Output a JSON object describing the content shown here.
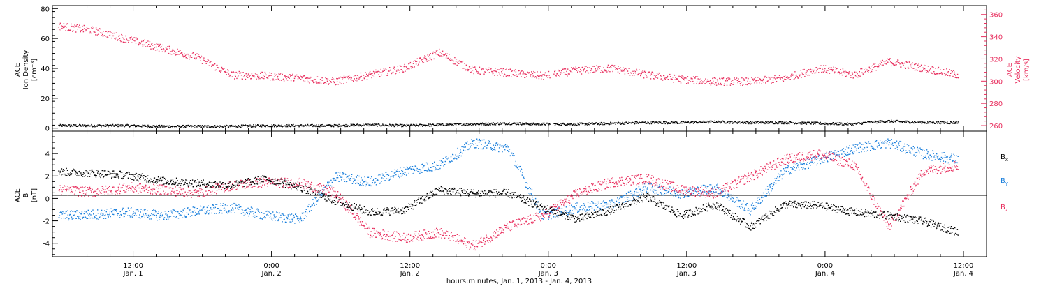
{
  "colors": {
    "black": "#000000",
    "pink": "#e8305f",
    "blue": "#1a7fdc"
  },
  "chart_data": [
    {
      "type": "scatter",
      "panel": "top",
      "ylabel_left": [
        "ACE",
        "Ion Density",
        "[cm⁻³]"
      ],
      "ylabel_right": [
        "ACE",
        "Velocity",
        "[km/s]"
      ],
      "ylim_left": [
        -2,
        82
      ],
      "yticks_left": [
        0,
        20,
        40,
        60,
        80
      ],
      "ylim_right": [
        255,
        368
      ],
      "yticks_right": [
        260,
        280,
        300,
        320,
        340,
        360
      ],
      "series": [
        {
          "name": "density",
          "color": "#000000",
          "x": [
            0,
            3,
            6,
            9,
            12,
            15,
            18,
            21,
            24,
            27,
            30,
            33,
            36,
            39,
            42,
            45,
            48,
            51,
            54,
            57,
            60,
            63,
            66,
            69,
            70,
            72,
            75,
            78
          ],
          "y": [
            2,
            2,
            2,
            1.5,
            1.5,
            1.5,
            2,
            2,
            2,
            2.5,
            2,
            2.5,
            3,
            3.5,
            3,
            3,
            3.5,
            4,
            4,
            4.5,
            4,
            4,
            3.5,
            3,
            4,
            5,
            4,
            4
          ]
        },
        {
          "name": "velocity",
          "color": "#e8305f",
          "x": [
            0,
            3,
            6,
            9,
            12,
            15,
            18,
            21,
            24,
            27,
            30,
            33,
            36,
            39,
            42,
            45,
            48,
            51,
            54,
            57,
            60,
            63,
            66,
            69,
            72,
            75,
            78
          ],
          "y": [
            350,
            346,
            338,
            330,
            322,
            306,
            305,
            303,
            300,
            306,
            312,
            326,
            310,
            308,
            305,
            310,
            312,
            306,
            302,
            300,
            300,
            303,
            312,
            306,
            318,
            312,
            306
          ]
        }
      ]
    },
    {
      "type": "scatter",
      "panel": "bottom",
      "ylabel_left": [
        "ACE",
        "B",
        "[nT]"
      ],
      "ylim": [
        -5.2,
        6
      ],
      "yticks": [
        -4,
        -2,
        0,
        2,
        4
      ],
      "legend": [
        "Bx",
        "By",
        "Bz"
      ],
      "series": [
        {
          "name": "Bx",
          "color": "#000000",
          "x": [
            0,
            3,
            6,
            9,
            12,
            15,
            18,
            21,
            24,
            27,
            30,
            33,
            36,
            39,
            42,
            45,
            48,
            51,
            54,
            57,
            60,
            63,
            66,
            69,
            72,
            75,
            78
          ],
          "y": [
            2.4,
            2.3,
            2.1,
            1.6,
            1.4,
            1.2,
            1.8,
            1.0,
            -0.2,
            -1.2,
            -1.0,
            0.8,
            0.5,
            0.5,
            -0.8,
            -1.8,
            -1.0,
            0.2,
            -1.5,
            -0.5,
            -2.5,
            -0.5,
            -0.6,
            -1.2,
            -1.5,
            -2.0,
            -3.0
          ]
        },
        {
          "name": "By",
          "color": "#1a7fdc",
          "x": [
            0,
            3,
            6,
            9,
            12,
            15,
            18,
            21,
            24,
            27,
            30,
            33,
            36,
            39,
            42,
            45,
            48,
            51,
            54,
            57,
            60,
            63,
            66,
            69,
            72,
            75,
            78
          ],
          "y": [
            -1.5,
            -1.4,
            -1.2,
            -1.5,
            -1.1,
            -0.8,
            -1.5,
            -1.8,
            2.0,
            1.5,
            2.5,
            3.0,
            5.0,
            4.5,
            -1.5,
            -0.8,
            -0.5,
            1.0,
            0.5,
            1.0,
            -1.0,
            2.5,
            3.5,
            4.5,
            5.0,
            4.0,
            3.5
          ]
        },
        {
          "name": "Bz",
          "color": "#e8305f",
          "x": [
            0,
            3,
            6,
            9,
            12,
            15,
            18,
            21,
            24,
            27,
            30,
            33,
            36,
            39,
            42,
            45,
            48,
            51,
            54,
            57,
            60,
            63,
            66,
            69,
            72,
            75,
            78
          ],
          "y": [
            0.8,
            0.6,
            1.0,
            0.8,
            0.5,
            1.2,
            1.5,
            1.4,
            0.5,
            -3.0,
            -3.5,
            -3.0,
            -4.2,
            -2.5,
            -1.5,
            0.5,
            1.5,
            1.8,
            0.8,
            0.5,
            2.0,
            3.5,
            4.0,
            3.0,
            -2.5,
            2.5,
            3.0
          ]
        }
      ]
    }
  ],
  "x_axis": {
    "ticks": [
      {
        "hour": 12,
        "time": "12:00",
        "date": "Jan. 1"
      },
      {
        "hour": 24,
        "time": "0:00",
        "date": "Jan. 2"
      },
      {
        "hour": 36,
        "time": "12:00",
        "date": "Jan. 2"
      },
      {
        "hour": 48,
        "time": "0:00",
        "date": "Jan. 3"
      },
      {
        "hour": 60,
        "time": "12:00",
        "date": "Jan. 3"
      },
      {
        "hour": 72,
        "time": "0:00",
        "date": "Jan. 4"
      },
      {
        "hour": 84,
        "time": "12:00",
        "date": "Jan. 4"
      }
    ],
    "xlim_hours": [
      5,
      86
    ],
    "xlabel": "hours:minutes, Jan.  1, 2013 - Jan.  4, 2013"
  },
  "legend_labels": {
    "bx": "B",
    "bx_sub": "x",
    "by": "B",
    "by_sub": "y",
    "bz": "B",
    "bz_sub": "z"
  }
}
